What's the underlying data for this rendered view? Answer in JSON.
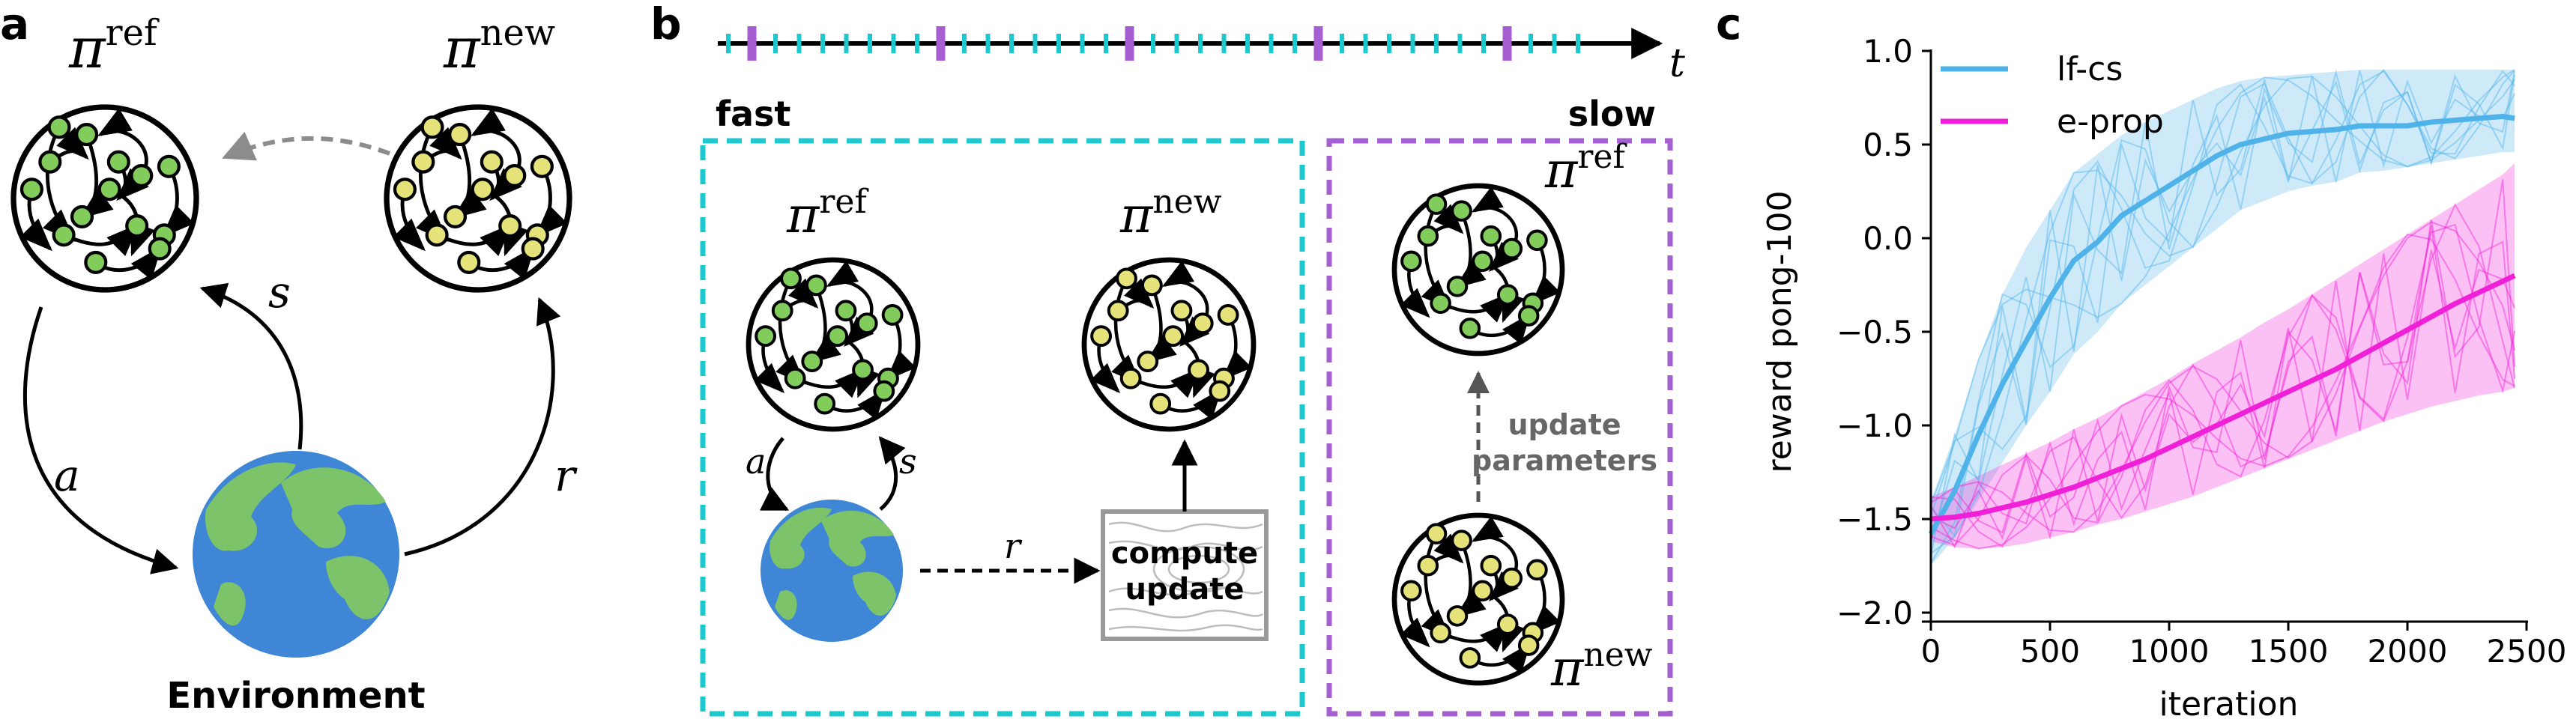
{
  "panels": {
    "a": {
      "letter": "a",
      "pi_ref": "π",
      "pi_ref_sup": "ref",
      "pi_new": "π",
      "pi_new_sup": "new",
      "edge_a": "a",
      "edge_s": "s",
      "edge_r": "r",
      "environment_label": "Environment"
    },
    "b": {
      "letter": "b",
      "time_label": "t",
      "fast_label": "fast",
      "slow_label": "slow",
      "pi_ref": "π",
      "pi_ref_sup": "ref",
      "pi_new": "π",
      "pi_new_sup": "new",
      "edge_a": "a",
      "edge_s": "s",
      "edge_r": "r",
      "compute_line1": "compute",
      "compute_line2": "update",
      "update_line1": "update",
      "update_line2": "parameters"
    },
    "c": {
      "letter": "c"
    }
  },
  "colors": {
    "cyan": "#1ec8cf",
    "purple": "#a65fd1",
    "node_green": "#82cc5c",
    "node_yellow": "#e6e27a",
    "lfcs": "#4fb3ea",
    "eprop": "#f020d8",
    "ocean": "#3f87d6",
    "land": "#7cc36a"
  },
  "chart_data": {
    "type": "line",
    "title": "",
    "xlabel": "iteration",
    "ylabel": "reward pong-100",
    "xlim": [
      0,
      2500
    ],
    "ylim": [
      -2.0,
      1.0
    ],
    "xticks": [
      "0",
      "500",
      "1000",
      "1500",
      "2000",
      "2500"
    ],
    "yticks": [
      "−2.0",
      "−1.5",
      "−1.0",
      "−0.5",
      "0.0",
      "0.5",
      "1.0"
    ],
    "legend": "top-left",
    "grid": false,
    "x": [
      0,
      100,
      200,
      300,
      400,
      500,
      600,
      700,
      800,
      900,
      1000,
      1100,
      1200,
      1300,
      1400,
      1500,
      1600,
      1700,
      1800,
      1900,
      2000,
      2100,
      2200,
      2300,
      2400,
      2450
    ],
    "series": [
      {
        "name": "lf-cs",
        "color": "#4fb3ea",
        "values": [
          -1.58,
          -1.35,
          -1.05,
          -0.78,
          -0.55,
          -0.32,
          -0.12,
          -0.02,
          0.12,
          0.2,
          0.28,
          0.36,
          0.44,
          0.5,
          0.53,
          0.56,
          0.57,
          0.58,
          0.6,
          0.6,
          0.6,
          0.62,
          0.63,
          0.64,
          0.65,
          0.64
        ],
        "band_low": [
          -1.75,
          -1.6,
          -1.4,
          -1.2,
          -1.0,
          -0.82,
          -0.62,
          -0.5,
          -0.35,
          -0.25,
          -0.15,
          -0.05,
          0.05,
          0.15,
          0.2,
          0.25,
          0.28,
          0.3,
          0.35,
          0.36,
          0.38,
          0.4,
          0.42,
          0.44,
          0.46,
          0.46
        ],
        "band_high": [
          -1.4,
          -1.05,
          -0.65,
          -0.3,
          -0.05,
          0.15,
          0.35,
          0.45,
          0.55,
          0.62,
          0.68,
          0.74,
          0.8,
          0.84,
          0.86,
          0.87,
          0.88,
          0.89,
          0.9,
          0.9,
          0.9,
          0.9,
          0.9,
          0.9,
          0.9,
          0.9
        ]
      },
      {
        "name": "e-prop",
        "color": "#f020d8",
        "values": [
          -1.5,
          -1.49,
          -1.47,
          -1.44,
          -1.41,
          -1.37,
          -1.33,
          -1.28,
          -1.23,
          -1.18,
          -1.12,
          -1.06,
          -1.0,
          -0.94,
          -0.88,
          -0.82,
          -0.76,
          -0.7,
          -0.63,
          -0.56,
          -0.49,
          -0.42,
          -0.35,
          -0.29,
          -0.23,
          -0.2
        ],
        "band_low": [
          -1.62,
          -1.65,
          -1.66,
          -1.65,
          -1.63,
          -1.6,
          -1.57,
          -1.53,
          -1.5,
          -1.46,
          -1.42,
          -1.38,
          -1.33,
          -1.28,
          -1.23,
          -1.18,
          -1.13,
          -1.08,
          -1.03,
          -0.98,
          -0.94,
          -0.9,
          -0.87,
          -0.84,
          -0.82,
          -0.8
        ],
        "band_high": [
          -1.38,
          -1.33,
          -1.27,
          -1.21,
          -1.15,
          -1.09,
          -1.02,
          -0.96,
          -0.89,
          -0.82,
          -0.75,
          -0.67,
          -0.6,
          -0.53,
          -0.45,
          -0.38,
          -0.3,
          -0.22,
          -0.14,
          -0.06,
          0.02,
          0.1,
          0.18,
          0.26,
          0.34,
          0.4
        ]
      }
    ]
  }
}
